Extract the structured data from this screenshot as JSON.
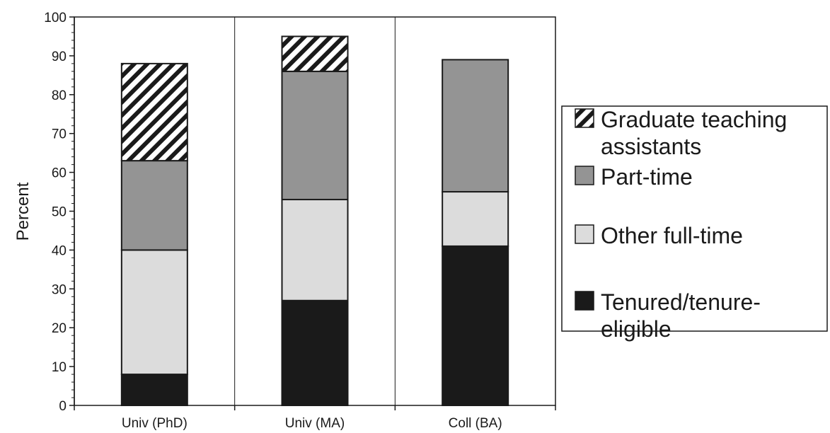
{
  "chart_data": {
    "type": "bar",
    "stacked": true,
    "title": "",
    "xlabel": "",
    "ylabel": "Percent",
    "ylim": [
      0,
      100
    ],
    "yticks": [
      0,
      10,
      20,
      30,
      40,
      50,
      60,
      70,
      80,
      90,
      100
    ],
    "grid": false,
    "legend_position": "right",
    "categories": [
      "Univ (PhD)",
      "Univ (MA)",
      "Coll (BA)"
    ],
    "series": [
      {
        "name": "Tenured/tenure-eligible",
        "legend_lines": [
          "Tenured/tenure-",
          "eligible"
        ],
        "values": [
          8,
          27,
          41
        ],
        "color": "#1a1a1a",
        "pattern": "solid"
      },
      {
        "name": "Other full-time",
        "legend_lines": [
          "Other full-time"
        ],
        "values": [
          32,
          26,
          14
        ],
        "color": "#dcdcdc",
        "pattern": "solid"
      },
      {
        "name": "Part-time",
        "legend_lines": [
          "Part-time"
        ],
        "values": [
          23,
          33,
          34
        ],
        "color": "#949494",
        "pattern": "solid"
      },
      {
        "name": "Graduate teaching assistants",
        "legend_lines": [
          "Graduate teaching",
          "assistants"
        ],
        "values": [
          25,
          9,
          0
        ],
        "color": "#1a1a1a",
        "pattern": "hatch"
      }
    ]
  }
}
